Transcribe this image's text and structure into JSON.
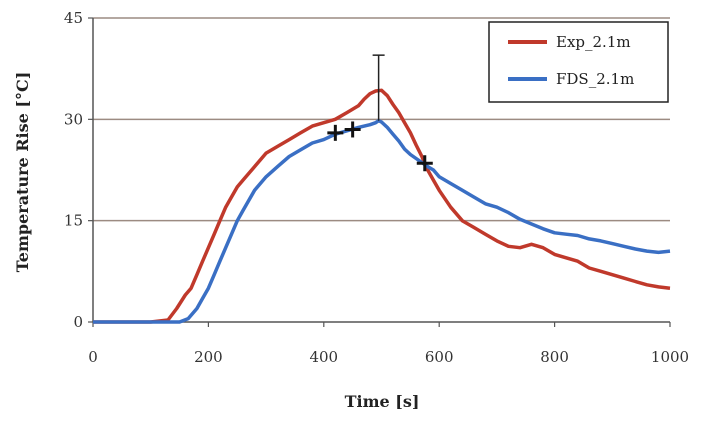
{
  "chart_data": {
    "type": "line",
    "title": "",
    "xlabel": "Time [s]",
    "ylabel": "Temperature Rise [°C]",
    "xlim": [
      0,
      1000
    ],
    "ylim": [
      0,
      45
    ],
    "xticks": [
      0,
      200,
      400,
      600,
      800,
      1000
    ],
    "yticks": [
      0,
      15,
      30,
      45
    ],
    "grid": "horizontal",
    "legend_position": "top-right",
    "series": [
      {
        "name": "Exp_2.1m",
        "color": "#c0392b",
        "x": [
          0,
          50,
          100,
          130,
          145,
          160,
          170,
          180,
          190,
          200,
          210,
          220,
          230,
          240,
          250,
          260,
          270,
          280,
          300,
          320,
          340,
          360,
          380,
          400,
          420,
          440,
          460,
          470,
          480,
          490,
          500,
          510,
          520,
          530,
          540,
          550,
          560,
          570,
          580,
          590,
          600,
          620,
          640,
          660,
          680,
          700,
          720,
          740,
          760,
          780,
          800,
          820,
          840,
          860,
          880,
          900,
          920,
          940,
          960,
          980,
          1000
        ],
        "y": [
          0,
          0,
          0,
          0.3,
          2,
          4,
          5,
          7,
          9,
          11,
          13,
          15,
          17,
          18.5,
          20,
          21,
          22,
          23,
          25,
          26,
          27,
          28,
          29,
          29.5,
          30,
          31,
          32,
          33,
          33.8,
          34.2,
          34.3,
          33.5,
          32.2,
          31,
          29.5,
          28,
          26.2,
          24.5,
          22.5,
          21,
          19.5,
          17,
          15,
          14,
          13,
          12,
          11.2,
          11,
          11.5,
          11,
          10,
          9.5,
          9,
          8,
          7.5,
          7,
          6.5,
          6,
          5.5,
          5.2,
          5
        ]
      },
      {
        "name": "FDS_2.1m",
        "color": "#3a6fc4",
        "x": [
          0,
          50,
          100,
          150,
          165,
          180,
          190,
          200,
          210,
          220,
          230,
          240,
          250,
          260,
          270,
          280,
          300,
          320,
          340,
          360,
          380,
          400,
          420,
          440,
          460,
          480,
          490,
          495,
          500,
          510,
          520,
          530,
          540,
          550,
          560,
          570,
          580,
          590,
          600,
          620,
          640,
          660,
          680,
          700,
          720,
          740,
          760,
          780,
          800,
          820,
          840,
          860,
          880,
          900,
          920,
          940,
          960,
          980,
          1000
        ],
        "y": [
          0,
          0,
          0,
          0,
          0.5,
          2,
          3.5,
          5,
          7,
          9,
          11,
          13,
          15,
          16.5,
          18,
          19.5,
          21.5,
          23,
          24.5,
          25.5,
          26.5,
          27,
          27.8,
          28.3,
          28.8,
          29.2,
          29.5,
          29.8,
          29.6,
          28.8,
          27.8,
          26.8,
          25.6,
          24.8,
          24.2,
          23.6,
          23,
          22.5,
          21.5,
          20.5,
          19.5,
          18.5,
          17.5,
          17,
          16.2,
          15.2,
          14.5,
          13.8,
          13.2,
          13,
          12.8,
          12.3,
          12,
          11.6,
          11.2,
          10.8,
          10.5,
          10.3,
          10.5
        ]
      }
    ],
    "markers": [
      {
        "x": 420,
        "y": 28
      },
      {
        "x": 450,
        "y": 28.5
      },
      {
        "x": 575,
        "y": 23.5
      }
    ],
    "errorbar": {
      "x": 495,
      "y": 29.8,
      "upper": 39.5
    }
  }
}
